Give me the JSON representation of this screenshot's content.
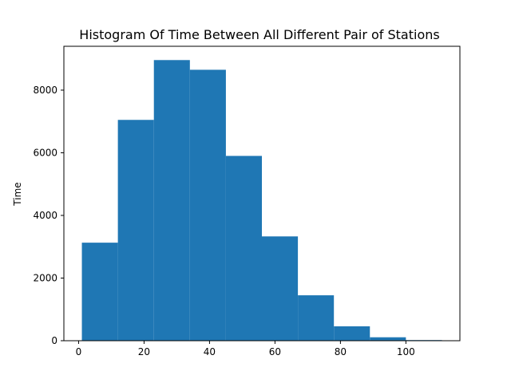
{
  "chart_data": {
    "type": "bar",
    "title": "Histogram Of Time Between All Different Pair of Stations",
    "xlabel": "",
    "ylabel": "Time",
    "bins": [
      {
        "start": 1,
        "end": 12,
        "value": 3130
      },
      {
        "start": 12,
        "end": 23,
        "value": 7050
      },
      {
        "start": 23,
        "end": 34,
        "value": 8960
      },
      {
        "start": 34,
        "end": 45,
        "value": 8650
      },
      {
        "start": 45,
        "end": 56,
        "value": 5900
      },
      {
        "start": 56,
        "end": 67,
        "value": 3330
      },
      {
        "start": 67,
        "end": 78,
        "value": 1450
      },
      {
        "start": 78,
        "end": 89,
        "value": 460
      },
      {
        "start": 89,
        "end": 100,
        "value": 110
      },
      {
        "start": 100,
        "end": 111,
        "value": 20
      }
    ],
    "xlim": [
      -4.5,
      116.5
    ],
    "ylim": [
      0,
      9400
    ],
    "xticks": [
      0,
      20,
      40,
      60,
      80,
      100
    ],
    "yticks": [
      0,
      2000,
      4000,
      6000,
      8000
    ],
    "xtick_labels": [
      "0",
      "20",
      "40",
      "60",
      "80",
      "100"
    ],
    "ytick_labels": [
      "0",
      "2000",
      "4000",
      "6000",
      "8000"
    ],
    "bar_color": "#1f77b4",
    "grid": false
  }
}
